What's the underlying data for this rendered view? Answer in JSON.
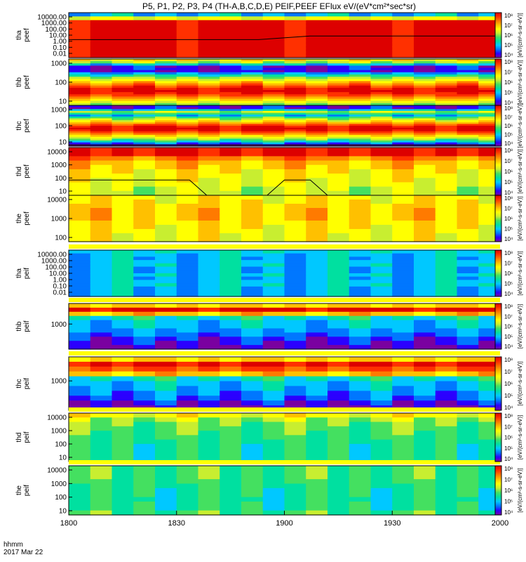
{
  "chart_data": {
    "type": "heatmap",
    "title": "P5, P1, P2, P3, P4 (TH-A,B,C,D,E) PEIF,PEEF EFlux eV/(eV*cm²*sec*sr)",
    "xaxis": {
      "label_line1": "hhmm",
      "label_line2": "2017 Mar 22",
      "range": [
        1800,
        2000
      ],
      "ticks": [
        "1800",
        "1830",
        "1900",
        "1930",
        "2000"
      ]
    },
    "colorbar": {
      "ticks": [
        "10⁴",
        "10⁵",
        "10⁶",
        "10⁷",
        "10⁸"
      ],
      "label": "[eV/(cm²-s-sr-eV)]",
      "palette": [
        "#7a00a0",
        "#2b00ff",
        "#0077ff",
        "#00c8ff",
        "#00e0a0",
        "#44e060",
        "#c8ee30",
        "#ffff00",
        "#ffc000",
        "#ff7a00",
        "#ff3000",
        "#dd0000"
      ]
    },
    "panels": [
      {
        "name": "tha peef",
        "ylabel1": "tha",
        "ylabel2": "peef",
        "yticks": [
          "10000.00",
          "1000.00",
          "100.00",
          "10.00",
          "1.00",
          "0.10",
          "0.01"
        ],
        "bands": [
          2.6,
          6.5,
          11,
          11,
          11,
          11,
          11,
          11,
          11,
          11,
          11,
          11
        ],
        "trace": [
          [
            0,
            0.6
          ],
          [
            0.27,
            0.6
          ],
          [
            0.44,
            0.6
          ],
          [
            0.56,
            0.52
          ],
          [
            1,
            0.52
          ]
        ]
      },
      {
        "name": "thb peef",
        "ylabel1": "thb",
        "ylabel2": "peef",
        "yticks": [
          "1000",
          "100",
          "10"
        ],
        "bands": [
          7.3,
          5.8,
          3.2,
          0.8,
          1,
          0.5,
          2.4,
          4,
          5.5,
          6.5,
          7.6,
          8.6,
          9.6,
          10.6,
          11,
          10.4,
          9.5,
          8.5,
          7.5,
          6.5,
          5.5
        ],
        "trace": []
      },
      {
        "name": "thc peef",
        "ylabel1": "thc",
        "ylabel2": "peef",
        "yticks": [
          "1000",
          "100",
          "10"
        ],
        "bands": [
          1,
          0.6,
          3.2,
          6,
          4.5,
          2.6,
          4.8,
          6.2,
          7.3,
          8.4,
          9.5,
          10.6,
          11,
          10.5,
          9.5,
          8.5,
          7.4,
          6.4,
          5.2,
          3.8,
          1.8,
          0.4
        ],
        "trace": [
          [
            0,
            0.97
          ],
          [
            1,
            0.97
          ]
        ]
      },
      {
        "name": "thd peef",
        "ylabel1": "thd",
        "ylabel2": "peef",
        "yticks": [
          "10000",
          "1000",
          "100",
          "10"
        ],
        "bands": [
          10.5,
          10.8,
          9,
          8,
          7.6,
          7.2,
          7,
          6.7,
          6.5,
          6.2,
          6
        ],
        "trace": [
          [
            0,
            0.68
          ],
          [
            0.28,
            0.68
          ],
          [
            0.32,
            1
          ],
          [
            0.46,
            1
          ],
          [
            0.5,
            0.68
          ],
          [
            0.56,
            0.68
          ],
          [
            0.6,
            1
          ],
          [
            1,
            1
          ]
        ]
      },
      {
        "name": "the peef",
        "ylabel1": "the",
        "ylabel2": "peef",
        "yticks": [
          "10000",
          "1000",
          "100"
        ],
        "bands": [
          7,
          7.2,
          7.5,
          7.6,
          7.7,
          7.6,
          7.4,
          7.2,
          7,
          6.8,
          6.6
        ],
        "trace": []
      },
      {
        "name": "tha peif",
        "ylabel1": "tha",
        "ylabel2": "peif",
        "yticks": [
          "10000.00",
          "1000.00",
          "100.00",
          "10.00",
          "1.00",
          "0.10",
          "0.01"
        ],
        "bands": [
          3.4,
          3,
          2.6,
          3,
          3.2,
          2.6,
          2.9,
          3.1,
          2.7,
          3,
          3.2,
          2.6,
          2.8,
          2.6
        ],
        "trace": []
      },
      {
        "name": "thb peif",
        "ylabel1": "thb",
        "ylabel2": "peif",
        "yticks": [
          "1000"
        ],
        "bands": [
          7.5,
          11,
          8,
          3.8,
          3,
          3,
          2.4,
          2,
          1.4,
          0.6,
          0.2
        ],
        "trace": []
      },
      {
        "name": "thc peif",
        "ylabel1": "thc",
        "ylabel2": "peif",
        "yticks": [
          "1000"
        ],
        "bands": [
          7.5,
          10.5,
          9.5,
          8,
          3.6,
          3,
          2.6,
          2.2,
          1.6,
          0.8,
          0.3
        ],
        "trace": []
      },
      {
        "name": "thd peif",
        "ylabel1": "thd",
        "ylabel2": "peif",
        "yticks": [
          "10000",
          "1000",
          "100",
          "10"
        ],
        "bands": [
          7,
          5.6,
          5.2,
          5,
          4.7,
          4.5,
          4.4,
          4.3,
          4.2,
          4.1,
          4.2
        ],
        "trace": []
      },
      {
        "name": "the peif",
        "ylabel1": "the",
        "ylabel2": "peif",
        "yticks": [
          "10000",
          "1000",
          "100",
          "10"
        ],
        "bands": [
          4.6,
          4.7,
          4.6,
          4.5,
          4.4,
          4.2,
          4.1,
          4,
          4.1,
          4.3,
          4.8
        ],
        "trace": []
      }
    ]
  }
}
